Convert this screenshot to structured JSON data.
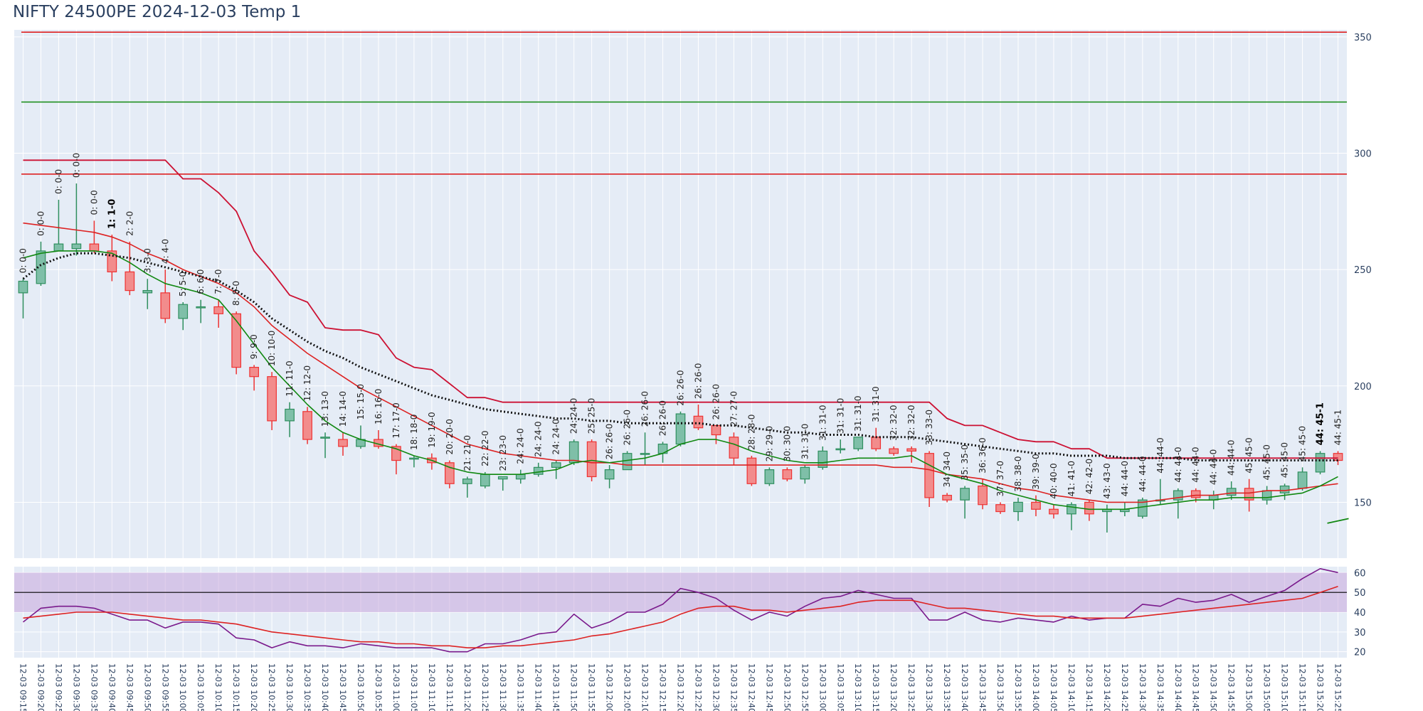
{
  "title": "NIFTY 24500PE 2024-12-03 Temp 1",
  "chart_data": {
    "type": "candlestick",
    "title": "NIFTY 24500PE 2024-12-03 Temp 1",
    "x_labels": [
      "12-03 09:15",
      "12-03 09:20",
      "12-03 09:25",
      "12-03 09:30",
      "12-03 09:35",
      "12-03 09:40",
      "12-03 09:45",
      "12-03 09:50",
      "12-03 09:55",
      "12-03 10:00",
      "12-03 10:05",
      "12-03 10:10",
      "12-03 10:15",
      "12-03 10:20",
      "12-03 10:25",
      "12-03 10:30",
      "12-03 10:35",
      "12-03 10:40",
      "12-03 10:45",
      "12-03 10:50",
      "12-03 10:55",
      "12-03 11:00",
      "12-03 11:05",
      "12-03 11:10",
      "12-03 11:15",
      "12-03 11:20",
      "12-03 11:25",
      "12-03 11:30",
      "12-03 11:35",
      "12-03 11:40",
      "12-03 11:45",
      "12-03 11:50",
      "12-03 11:55",
      "12-03 12:00",
      "12-03 12:05",
      "12-03 12:10",
      "12-03 12:15",
      "12-03 12:20",
      "12-03 12:25",
      "12-03 12:30",
      "12-03 12:35",
      "12-03 12:40",
      "12-03 12:45",
      "12-03 12:50",
      "12-03 12:55",
      "12-03 13:00",
      "12-03 13:05",
      "12-03 13:10",
      "12-03 13:15",
      "12-03 13:20",
      "12-03 13:25",
      "12-03 13:30",
      "12-03 13:35",
      "12-03 13:40",
      "12-03 13:45",
      "12-03 13:50",
      "12-03 13:55",
      "12-03 14:00",
      "12-03 14:05",
      "12-03 14:10",
      "12-03 14:15",
      "12-03 14:20",
      "12-03 14:25",
      "12-03 14:30",
      "12-03 14:35",
      "12-03 14:40",
      "12-03 14:45",
      "12-03 14:50",
      "12-03 14:55",
      "12-03 15:00",
      "12-03 15:05",
      "12-03 15:10",
      "12-03 15:15",
      "12-03 15:20",
      "12-03 15:25"
    ],
    "price_axis": {
      "range": [
        126,
        353
      ],
      "ticks": [
        150,
        200,
        250,
        300,
        350
      ]
    },
    "indicator_axis": {
      "range": [
        17,
        63
      ],
      "ticks": [
        20,
        30,
        40,
        50,
        60
      ]
    },
    "candles": [
      [
        240,
        245,
        229,
        246
      ],
      [
        244,
        258,
        243,
        262
      ],
      [
        258,
        261,
        258,
        280
      ],
      [
        259,
        261,
        256,
        287
      ],
      [
        261,
        258,
        257,
        271
      ],
      [
        258,
        249,
        245,
        265
      ],
      [
        249,
        241,
        239,
        262
      ],
      [
        240,
        241,
        233,
        246
      ],
      [
        240,
        229,
        227,
        250
      ],
      [
        229,
        235,
        224,
        236
      ],
      [
        234,
        234,
        227,
        237
      ],
      [
        234,
        231,
        225,
        237
      ],
      [
        231,
        208,
        205,
        232
      ],
      [
        208,
        204,
        198,
        209
      ],
      [
        204,
        185,
        181,
        206
      ],
      [
        185,
        190,
        178,
        193
      ],
      [
        189,
        177,
        175,
        191
      ],
      [
        178,
        178,
        169,
        180
      ],
      [
        177,
        174,
        170,
        180
      ],
      [
        174,
        177,
        173,
        183
      ],
      [
        177,
        174,
        173,
        181
      ],
      [
        174,
        168,
        162,
        175
      ],
      [
        169,
        169,
        165,
        170
      ],
      [
        169,
        167,
        164,
        171
      ],
      [
        167,
        158,
        156,
        168
      ],
      [
        158,
        160,
        152,
        161
      ],
      [
        157,
        162,
        156,
        163
      ],
      [
        160,
        161,
        155,
        161
      ],
      [
        160,
        162,
        158,
        164
      ],
      [
        162,
        165,
        161,
        167
      ],
      [
        165,
        167,
        160,
        168
      ],
      [
        167,
        176,
        166,
        177
      ],
      [
        176,
        161,
        159,
        177
      ],
      [
        160,
        164,
        156,
        166
      ],
      [
        164,
        171,
        164,
        172
      ],
      [
        171,
        171,
        166,
        180
      ],
      [
        171,
        175,
        167,
        176
      ],
      [
        175,
        188,
        174,
        189
      ],
      [
        187,
        182,
        181,
        192
      ],
      [
        183,
        179,
        175,
        183
      ],
      [
        178,
        169,
        166,
        180
      ],
      [
        169,
        158,
        157,
        170
      ],
      [
        158,
        164,
        157,
        165
      ],
      [
        164,
        160,
        159,
        165
      ],
      [
        160,
        165,
        158,
        166
      ],
      [
        165,
        172,
        164,
        174
      ],
      [
        173,
        173,
        171,
        177
      ],
      [
        173,
        178,
        172,
        178
      ],
      [
        178,
        173,
        172,
        182
      ],
      [
        173,
        171,
        170,
        174
      ],
      [
        173,
        172,
        167,
        174
      ],
      [
        171,
        152,
        148,
        172
      ],
      [
        153,
        151,
        150,
        154
      ],
      [
        151,
        156,
        143,
        157
      ],
      [
        157,
        149,
        147,
        160
      ],
      [
        149,
        146,
        145,
        150
      ],
      [
        146,
        150,
        142,
        152
      ],
      [
        150,
        147,
        144,
        153
      ],
      [
        147,
        145,
        143,
        149
      ],
      [
        145,
        149,
        138,
        150
      ],
      [
        150,
        145,
        142,
        151
      ],
      [
        146,
        147,
        137,
        149
      ],
      [
        146,
        147,
        144,
        150
      ],
      [
        144,
        151,
        143,
        152
      ],
      [
        151,
        151,
        149,
        160
      ],
      [
        151,
        155,
        143,
        156
      ],
      [
        155,
        152,
        150,
        156
      ],
      [
        151,
        153,
        147,
        155
      ],
      [
        153,
        156,
        151,
        159
      ],
      [
        156,
        151,
        146,
        160
      ],
      [
        151,
        155,
        149,
        157
      ],
      [
        154,
        157,
        151,
        158
      ],
      [
        156,
        163,
        155,
        165
      ],
      [
        163,
        171,
        162,
        172
      ],
      [
        171,
        168,
        166,
        172
      ]
    ],
    "candle_labels": [
      "0: 0-0",
      "0: 0-0",
      "0: 0-0",
      "0: 0-0",
      "0: 0-0",
      "1: 1-0",
      "2: 2-0",
      "3: 3-0",
      "4: 4-0",
      "5: 5-0",
      "6: 6-0",
      "7: 7-0",
      "8: 8-0",
      "9: 9-0",
      "10: 10-0",
      "11: 11-0",
      "12: 12-0",
      "13: 13-0",
      "14: 14-0",
      "15: 15-0",
      "16: 16-0",
      "17: 17-0",
      "18: 18-0",
      "19: 19-0",
      "20: 20-0",
      "21: 21-0",
      "22: 22-0",
      "23: 23-0",
      "24: 24-0",
      "24: 24-0",
      "24: 24-0",
      "24: 24-0",
      "25: 25-0",
      "26: 26-0",
      "26: 26-0",
      "26: 26-0",
      "26: 26-0",
      "26: 26-0",
      "26: 26-0",
      "26: 26-0",
      "27: 27-0",
      "28: 28-0",
      "29: 29-0",
      "30: 30-0",
      "31: 31-0",
      "31: 31-0",
      "31: 31-0",
      "31: 31-0",
      "31: 31-0",
      "32: 32-0",
      "32: 32-0",
      "33: 33-0",
      "34: 34-0",
      "35: 35-0",
      "36: 36-0",
      "37: 37-0",
      "38: 38-0",
      "39: 39-0",
      "40: 40-0",
      "41: 41-0",
      "42: 42-0",
      "43: 43-0",
      "44: 44-0",
      "44: 44-0",
      "44: 44-0",
      "44: 44-0",
      "44: 44-0",
      "44: 44-0",
      "44: 44-0",
      "45: 45-0",
      "45: 45-0",
      "45: 45-0",
      "45: 45-0",
      "44: 45-1",
      "44: 45-1"
    ],
    "bold_label_indices": [
      5,
      73
    ],
    "horizontal_lines": [
      {
        "value": 352,
        "color": "#dd1111"
      },
      {
        "value": 322,
        "color": "#118811"
      },
      {
        "value": 291,
        "color": "#dd1111"
      }
    ],
    "upper_band": [
      297,
      297,
      297,
      297,
      297,
      297,
      297,
      297,
      297,
      289,
      289,
      283,
      275,
      258,
      249,
      239,
      236,
      225,
      224,
      224,
      222,
      212,
      208,
      207,
      201,
      195,
      195,
      193,
      193,
      193,
      193,
      193,
      193,
      193,
      193,
      193,
      193,
      193,
      193,
      193,
      193,
      193,
      193,
      193,
      193,
      193,
      193,
      193,
      193,
      193,
      193,
      193,
      186,
      183,
      183,
      180,
      177,
      176,
      176,
      173,
      173,
      169,
      169,
      169,
      169,
      169,
      169,
      169,
      169,
      169,
      169,
      169,
      169,
      169,
      169
    ],
    "ema_slow": [
      270,
      269,
      268,
      267,
      266,
      264,
      261,
      257,
      254,
      250,
      247,
      244,
      240,
      234,
      226,
      220,
      214,
      209,
      204,
      199,
      195,
      191,
      187,
      183,
      179,
      175,
      173,
      171,
      170,
      169,
      168,
      168,
      167,
      167,
      166,
      166,
      166,
      166,
      166,
      166,
      166,
      166,
      166,
      166,
      166,
      166,
      166,
      166,
      166,
      165,
      165,
      164,
      162,
      161,
      160,
      158,
      156,
      155,
      153,
      152,
      151,
      150,
      150,
      150,
      151,
      152,
      153,
      153,
      154,
      154,
      155,
      155,
      156,
      157,
      158
    ],
    "ema_fast": [
      255,
      257,
      258,
      258,
      258,
      257,
      253,
      248,
      244,
      242,
      240,
      237,
      228,
      218,
      208,
      200,
      192,
      185,
      180,
      177,
      175,
      173,
      170,
      168,
      165,
      163,
      162,
      162,
      162,
      163,
      164,
      167,
      168,
      167,
      168,
      169,
      171,
      175,
      177,
      177,
      175,
      172,
      170,
      168,
      167,
      167,
      168,
      169,
      169,
      169,
      170,
      166,
      162,
      160,
      158,
      155,
      153,
      151,
      149,
      148,
      147,
      147,
      147,
      148,
      149,
      150,
      151,
      151,
      152,
      152,
      152,
      153,
      154,
      157,
      161
    ],
    "vwap": [
      246,
      252,
      255,
      257,
      257,
      256,
      255,
      253,
      251,
      249,
      247,
      245,
      241,
      236,
      229,
      224,
      219,
      215,
      212,
      208,
      205,
      202,
      199,
      196,
      194,
      192,
      190,
      189,
      188,
      187,
      186,
      186,
      185,
      185,
      184,
      184,
      184,
      184,
      184,
      183,
      183,
      182,
      181,
      180,
      180,
      179,
      179,
      179,
      178,
      178,
      178,
      177,
      176,
      175,
      174,
      173,
      172,
      171,
      171,
      170,
      170,
      170,
      169,
      169,
      169,
      169,
      168,
      168,
      168,
      168,
      168,
      168,
      168,
      168,
      168
    ],
    "vwap_visible_from": 0,
    "short_green_segment": [
      [
        73.4,
        141
      ],
      [
        74.6,
        143
      ]
    ],
    "rsi": [
      35,
      42,
      43,
      43,
      42,
      39,
      36,
      36,
      32,
      35,
      35,
      34,
      27,
      26,
      22,
      25,
      23,
      23,
      22,
      24,
      23,
      22,
      22,
      22,
      20,
      20,
      24,
      24,
      26,
      29,
      30,
      39,
      32,
      35,
      40,
      40,
      44,
      52,
      50,
      47,
      41,
      36,
      40,
      38,
      43,
      47,
      48,
      51,
      49,
      47,
      47,
      36,
      36,
      40,
      36,
      35,
      37,
      36,
      35,
      38,
      36,
      37,
      37,
      44,
      43,
      47,
      45,
      46,
      49,
      45,
      48,
      51,
      57,
      62,
      60
    ],
    "rsi_ma": [
      37,
      38,
      39,
      40,
      40,
      40,
      39,
      38,
      37,
      36,
      36,
      35,
      34,
      32,
      30,
      29,
      28,
      27,
      26,
      25,
      25,
      24,
      24,
      23,
      23,
      22,
      22,
      23,
      23,
      24,
      25,
      26,
      28,
      29,
      31,
      33,
      35,
      39,
      42,
      43,
      43,
      41,
      41,
      40,
      41,
      42,
      43,
      45,
      46,
      46,
      46,
      44,
      42,
      42,
      41,
      40,
      39,
      38,
      38,
      37,
      37,
      37,
      37,
      38,
      39,
      40,
      41,
      42,
      43,
      44,
      45,
      46,
      47,
      50,
      53
    ],
    "rsi_band": [
      40,
      60
    ],
    "rsi_midline": 50,
    "colors": {
      "increasing_fill": "#7fbfa8",
      "increasing_line": "#2f8f5f",
      "decreasing_fill": "#f28c8c",
      "decreasing_line": "#ee3333",
      "upper_band": "#cc1133",
      "ema_slow": "#dd2222",
      "ema_fast": "#118811",
      "vwap": "#111111",
      "rsi": "#7a1a8c",
      "rsi_ma": "#dd2222",
      "rsi_band_fill": "#c9a8dd",
      "plot_bg": "#e5ecf6",
      "grid": "#ffffff"
    }
  }
}
